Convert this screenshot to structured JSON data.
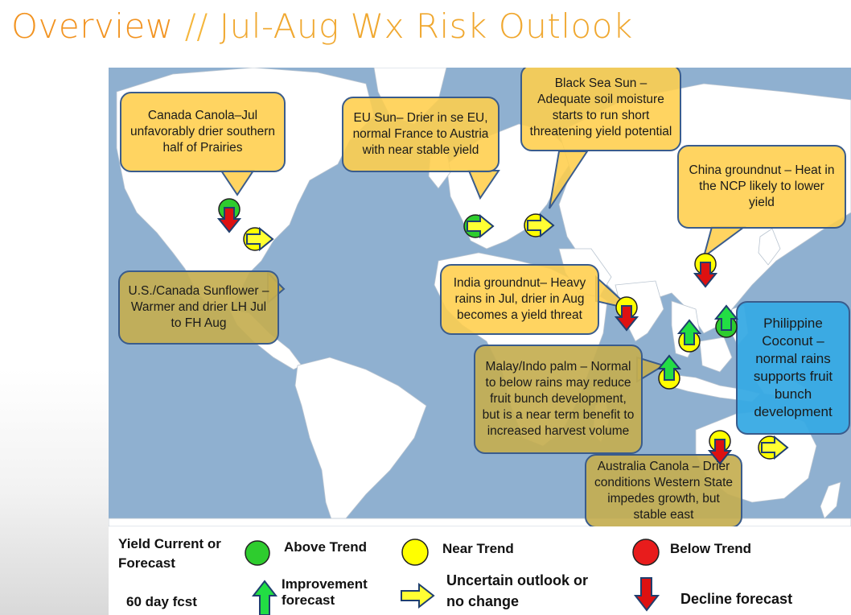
{
  "title": {
    "main": "Overview",
    "separator": " // ",
    "rest": "Jul-Aug Wx Risk Outlook"
  },
  "colors": {
    "above_trend": "#2ecc2e",
    "near_trend": "#ffff00",
    "below_trend": "#e81c1c",
    "improvement_arrow": "#22dd44",
    "uncertain_arrow": "#ffff33",
    "decline_arrow": "#dd1111",
    "ocean": "#8fb0d0",
    "land": "#ffffff",
    "callout_yellow": "#ffce4b",
    "callout_olive": "#c4ae50",
    "callout_blue": "#37aae4"
  },
  "callouts": {
    "canada_canola": "Canada Canola–Jul unfavorably drier southern half of Prairies",
    "eu_sun": "EU Sun– Drier in se EU, normal France to Austria with near stable yield",
    "black_sea_sun": "Black Sea Sun – Adequate soil moisture starts to run short threatening yield potential",
    "china_groundnut": "China groundnut – Heat in the NCP likely to lower yield",
    "us_canada_sunflower": "U.S./Canada Sunflower – Warmer and drier LH Jul to FH Aug",
    "india_groundnut": "India groundnut– Heavy rains in Jul, drier in Aug becomes a yield threat",
    "malay_indo_palm": "Malay/Indo palm – Normal to below rains may reduce fruit bunch development, but is a near term benefit to increased harvest volume",
    "philippine_coconut": "Philippine Coconut – normal rains supports fruit bunch development",
    "australia_canola": "Australia Canola – Drier conditions Western State impedes growth, but stable east"
  },
  "legend": {
    "yield_label": "Yield Current or Forecast",
    "fcst_label": "60 day fcst",
    "above_trend": "Above Trend",
    "near_trend": "Near Trend",
    "below_trend": "Below Trend",
    "improvement": "Improvement forecast",
    "uncertain": "Uncertain outlook or no change",
    "decline": "Decline forecast"
  }
}
